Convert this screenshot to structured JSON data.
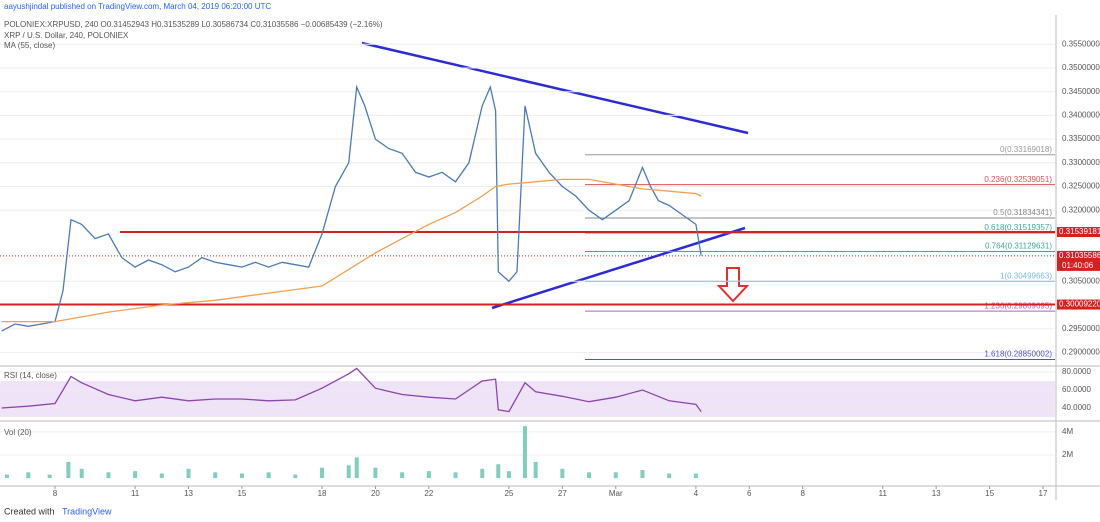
{
  "header": {
    "author_line": "aayushjindal published on TradingView.com, March 04, 2019 06:20:00 UTC",
    "symbol_line": "POLONIEX:XRPUSD, 240  O0.31452943  H0.31535289  L0.30586734  C0.31035586  −0.00685439 (−2.16%)"
  },
  "footer": {
    "created_with": "Created with",
    "brand": "TradingView"
  },
  "chart_data": [
    {
      "type": "line",
      "series": [
        {
          "name": "XRP / U.S. Dollar, 240, POLONIEX",
          "color": "#4a7bb7",
          "x": [
            6.0,
            6.5,
            7.0,
            7.5,
            8.0,
            8.3,
            8.6,
            9.0,
            9.5,
            10.0,
            10.5,
            11.0,
            11.5,
            12.0,
            12.5,
            13.0,
            13.5,
            14.0,
            14.5,
            15.0,
            15.5,
            16.0,
            16.5,
            17.0,
            17.5,
            18.0,
            18.5,
            19.0,
            19.3,
            19.6,
            20.0,
            20.5,
            21.0,
            21.5,
            22.0,
            22.5,
            23.0,
            23.5,
            24.0,
            24.3,
            24.5,
            24.6,
            25.0,
            25.3,
            25.6,
            26.0,
            26.5,
            27.0,
            27.5,
            28.0,
            28.5,
            29.0,
            29.5,
            30.0,
            30.3,
            30.6,
            31.0,
            31.5,
            32.0,
            32.2
          ],
          "values": [
            0.2945,
            0.296,
            0.2955,
            0.296,
            0.2965,
            0.303,
            0.318,
            0.317,
            0.314,
            0.315,
            0.31,
            0.308,
            0.3095,
            0.3085,
            0.307,
            0.308,
            0.31,
            0.309,
            0.3085,
            0.308,
            0.309,
            0.308,
            0.309,
            0.3085,
            0.308,
            0.315,
            0.325,
            0.33,
            0.346,
            0.342,
            0.335,
            0.333,
            0.332,
            0.328,
            0.327,
            0.328,
            0.326,
            0.33,
            0.342,
            0.346,
            0.341,
            0.307,
            0.305,
            0.307,
            0.342,
            0.332,
            0.328,
            0.325,
            0.323,
            0.32,
            0.318,
            0.32,
            0.322,
            0.329,
            0.325,
            0.322,
            0.321,
            0.319,
            0.317,
            0.3104
          ]
        },
        {
          "name": "MA (55, close)",
          "color": "#f0a050",
          "x": [
            6,
            8,
            10,
            12,
            14,
            16,
            18,
            20,
            22,
            23,
            24,
            24.5,
            25,
            26,
            27,
            28,
            29,
            30,
            31,
            32,
            32.2
          ],
          "values": [
            0.2965,
            0.2965,
            0.2985,
            0.3,
            0.301,
            0.3025,
            0.304,
            0.311,
            0.317,
            0.3195,
            0.323,
            0.325,
            0.3255,
            0.326,
            0.3265,
            0.3265,
            0.3255,
            0.3245,
            0.324,
            0.3235,
            0.323
          ]
        }
      ],
      "xlim": [
        5.94,
        45.45
      ],
      "ylim": [
        0.28734,
        0.36118
      ],
      "yticks": [
        {
          "value": 0.29,
          "label": "0.29000000"
        },
        {
          "value": 0.295,
          "label": "0.29500000"
        },
        {
          "value": 0.305,
          "label": "0.30500000"
        },
        {
          "value": 0.32,
          "label": "0.32000000"
        },
        {
          "value": 0.325,
          "label": "0.32500000"
        },
        {
          "value": 0.33,
          "label": "0.33000000"
        },
        {
          "value": 0.335,
          "label": "0.33500000"
        },
        {
          "value": 0.34,
          "label": "0.34000000"
        },
        {
          "value": 0.345,
          "label": "0.34500000"
        },
        {
          "value": 0.35,
          "label": "0.35000000"
        },
        {
          "value": 0.355,
          "label": "0.35500000"
        }
      ],
      "fib_levels": [
        {
          "value": 0.33169018,
          "label": "0(0.33169018)",
          "color": "#999999"
        },
        {
          "value": 0.32539051,
          "label": "0.236(0.32539051)",
          "color": "#e05050"
        },
        {
          "value": 0.31834341,
          "label": "0.5(0.31834341)",
          "color": "#888888"
        },
        {
          "value": 0.31519357,
          "label": "0.618(0.31519357)",
          "color": "#3aa89a"
        },
        {
          "value": 0.31129631,
          "label": "0.764(0.31129631)",
          "color": "#3aa89a"
        },
        {
          "value": 0.30499663,
          "label": "1(0.30499663)",
          "color": "#7ab8e0"
        },
        {
          "value": 0.29869695,
          "label": "1.236(0.29869695)",
          "color": "#b060c0"
        },
        {
          "value": 0.28850002,
          "label": "1.618(0.28850002)",
          "color": "#5050d0"
        }
      ],
      "levels": [
        {
          "value": 0.31539181,
          "label": "0.31539181"
        },
        {
          "value": 0.3000922,
          "label": "0.30009220"
        }
      ],
      "last_price": {
        "value": 0.31035586,
        "label": "0.31035586",
        "countdown": "01:40:06"
      }
    },
    {
      "type": "line",
      "series": [
        {
          "name": "RSI (14, close)",
          "color": "#8e44ad",
          "x": [
            6,
            7,
            8,
            8.6,
            9,
            10,
            11,
            12,
            13,
            14,
            15,
            16,
            17,
            18,
            19,
            19.3,
            20,
            21,
            22,
            23,
            24,
            24.5,
            24.6,
            25,
            25.6,
            26,
            27,
            28,
            29,
            30,
            31,
            32,
            32.2
          ],
          "values": [
            40,
            42,
            45,
            75,
            68,
            55,
            48,
            52,
            48,
            50,
            50,
            48,
            49,
            62,
            78,
            84,
            62,
            55,
            52,
            50,
            70,
            72,
            38,
            36,
            68,
            58,
            53,
            47,
            52,
            60,
            48,
            44,
            36
          ]
        }
      ],
      "xlim": [
        5.94,
        45.45
      ],
      "ylim": [
        26.7,
        85.6
      ],
      "yticks": [
        {
          "value": 40,
          "label": "40.0000"
        },
        {
          "value": 60,
          "label": "60.0000"
        },
        {
          "value": 80,
          "label": "80.0000"
        }
      ]
    },
    {
      "type": "bar",
      "series": [
        {
          "name": "Vol (20)",
          "color": "#7fcfbf",
          "x": [
            6.2,
            7,
            7.8,
            8.5,
            9,
            10,
            11,
            12,
            13,
            14,
            15,
            16,
            17,
            18,
            19,
            19.3,
            20,
            21,
            22,
            23,
            24,
            24.6,
            25,
            25.6,
            26,
            27,
            28,
            29,
            30,
            31,
            32
          ],
          "values": [
            300000,
            500000,
            300000,
            1400000,
            800000,
            500000,
            600000,
            400000,
            800000,
            500000,
            400000,
            500000,
            300000,
            900000,
            1100000,
            1800000,
            900000,
            500000,
            600000,
            500000,
            800000,
            1200000,
            600000,
            4500000,
            1400000,
            800000,
            500000,
            500000,
            700000,
            400000,
            400000
          ]
        }
      ],
      "xlim": [
        5.94,
        45.45
      ],
      "ylim": [
        -600000,
        4600000
      ],
      "yticks": [
        {
          "value": 2000000,
          "label": "2M"
        },
        {
          "value": 4000000,
          "label": "4M"
        }
      ],
      "xticks": [
        8,
        11,
        13,
        15,
        18,
        20,
        22,
        25,
        27,
        {
          "value": 29,
          "label": "Mar"
        },
        {
          "value": 32,
          "label": "4"
        },
        {
          "value": 34,
          "label": "6"
        },
        {
          "value": 36,
          "label": "8"
        },
        {
          "value": 39,
          "label": "11"
        },
        {
          "value": 41,
          "label": "13"
        },
        {
          "value": 43,
          "label": "15"
        },
        {
          "value": 45,
          "label": "17"
        }
      ]
    }
  ]
}
